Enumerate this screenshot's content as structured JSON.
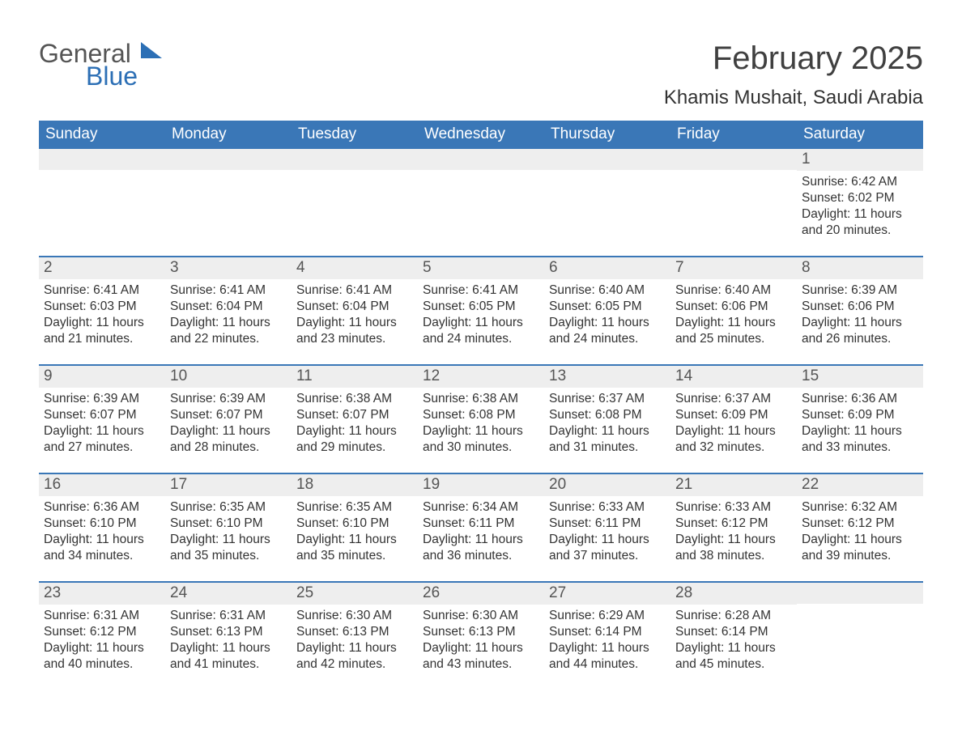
{
  "logo": {
    "line1": "General",
    "line2": "Blue"
  },
  "title": "February 2025",
  "location": "Khamis Mushait, Saudi Arabia",
  "colors": {
    "accent": "#3a77b7",
    "header_text": "#ffffff",
    "daynum_bg": "#eeeeee",
    "text": "#333333",
    "background": "#ffffff"
  },
  "calendar": {
    "type": "table",
    "columns": [
      "Sunday",
      "Monday",
      "Tuesday",
      "Wednesday",
      "Thursday",
      "Friday",
      "Saturday"
    ],
    "weeks": [
      [
        {
          "day": "",
          "sunrise": "",
          "sunset": "",
          "daylight": ""
        },
        {
          "day": "",
          "sunrise": "",
          "sunset": "",
          "daylight": ""
        },
        {
          "day": "",
          "sunrise": "",
          "sunset": "",
          "daylight": ""
        },
        {
          "day": "",
          "sunrise": "",
          "sunset": "",
          "daylight": ""
        },
        {
          "day": "",
          "sunrise": "",
          "sunset": "",
          "daylight": ""
        },
        {
          "day": "",
          "sunrise": "",
          "sunset": "",
          "daylight": ""
        },
        {
          "day": "1",
          "sunrise": "Sunrise: 6:42 AM",
          "sunset": "Sunset: 6:02 PM",
          "daylight": "Daylight: 11 hours and 20 minutes."
        }
      ],
      [
        {
          "day": "2",
          "sunrise": "Sunrise: 6:41 AM",
          "sunset": "Sunset: 6:03 PM",
          "daylight": "Daylight: 11 hours and 21 minutes."
        },
        {
          "day": "3",
          "sunrise": "Sunrise: 6:41 AM",
          "sunset": "Sunset: 6:04 PM",
          "daylight": "Daylight: 11 hours and 22 minutes."
        },
        {
          "day": "4",
          "sunrise": "Sunrise: 6:41 AM",
          "sunset": "Sunset: 6:04 PM",
          "daylight": "Daylight: 11 hours and 23 minutes."
        },
        {
          "day": "5",
          "sunrise": "Sunrise: 6:41 AM",
          "sunset": "Sunset: 6:05 PM",
          "daylight": "Daylight: 11 hours and 24 minutes."
        },
        {
          "day": "6",
          "sunrise": "Sunrise: 6:40 AM",
          "sunset": "Sunset: 6:05 PM",
          "daylight": "Daylight: 11 hours and 24 minutes."
        },
        {
          "day": "7",
          "sunrise": "Sunrise: 6:40 AM",
          "sunset": "Sunset: 6:06 PM",
          "daylight": "Daylight: 11 hours and 25 minutes."
        },
        {
          "day": "8",
          "sunrise": "Sunrise: 6:39 AM",
          "sunset": "Sunset: 6:06 PM",
          "daylight": "Daylight: 11 hours and 26 minutes."
        }
      ],
      [
        {
          "day": "9",
          "sunrise": "Sunrise: 6:39 AM",
          "sunset": "Sunset: 6:07 PM",
          "daylight": "Daylight: 11 hours and 27 minutes."
        },
        {
          "day": "10",
          "sunrise": "Sunrise: 6:39 AM",
          "sunset": "Sunset: 6:07 PM",
          "daylight": "Daylight: 11 hours and 28 minutes."
        },
        {
          "day": "11",
          "sunrise": "Sunrise: 6:38 AM",
          "sunset": "Sunset: 6:07 PM",
          "daylight": "Daylight: 11 hours and 29 minutes."
        },
        {
          "day": "12",
          "sunrise": "Sunrise: 6:38 AM",
          "sunset": "Sunset: 6:08 PM",
          "daylight": "Daylight: 11 hours and 30 minutes."
        },
        {
          "day": "13",
          "sunrise": "Sunrise: 6:37 AM",
          "sunset": "Sunset: 6:08 PM",
          "daylight": "Daylight: 11 hours and 31 minutes."
        },
        {
          "day": "14",
          "sunrise": "Sunrise: 6:37 AM",
          "sunset": "Sunset: 6:09 PM",
          "daylight": "Daylight: 11 hours and 32 minutes."
        },
        {
          "day": "15",
          "sunrise": "Sunrise: 6:36 AM",
          "sunset": "Sunset: 6:09 PM",
          "daylight": "Daylight: 11 hours and 33 minutes."
        }
      ],
      [
        {
          "day": "16",
          "sunrise": "Sunrise: 6:36 AM",
          "sunset": "Sunset: 6:10 PM",
          "daylight": "Daylight: 11 hours and 34 minutes."
        },
        {
          "day": "17",
          "sunrise": "Sunrise: 6:35 AM",
          "sunset": "Sunset: 6:10 PM",
          "daylight": "Daylight: 11 hours and 35 minutes."
        },
        {
          "day": "18",
          "sunrise": "Sunrise: 6:35 AM",
          "sunset": "Sunset: 6:10 PM",
          "daylight": "Daylight: 11 hours and 35 minutes."
        },
        {
          "day": "19",
          "sunrise": "Sunrise: 6:34 AM",
          "sunset": "Sunset: 6:11 PM",
          "daylight": "Daylight: 11 hours and 36 minutes."
        },
        {
          "day": "20",
          "sunrise": "Sunrise: 6:33 AM",
          "sunset": "Sunset: 6:11 PM",
          "daylight": "Daylight: 11 hours and 37 minutes."
        },
        {
          "day": "21",
          "sunrise": "Sunrise: 6:33 AM",
          "sunset": "Sunset: 6:12 PM",
          "daylight": "Daylight: 11 hours and 38 minutes."
        },
        {
          "day": "22",
          "sunrise": "Sunrise: 6:32 AM",
          "sunset": "Sunset: 6:12 PM",
          "daylight": "Daylight: 11 hours and 39 minutes."
        }
      ],
      [
        {
          "day": "23",
          "sunrise": "Sunrise: 6:31 AM",
          "sunset": "Sunset: 6:12 PM",
          "daylight": "Daylight: 11 hours and 40 minutes."
        },
        {
          "day": "24",
          "sunrise": "Sunrise: 6:31 AM",
          "sunset": "Sunset: 6:13 PM",
          "daylight": "Daylight: 11 hours and 41 minutes."
        },
        {
          "day": "25",
          "sunrise": "Sunrise: 6:30 AM",
          "sunset": "Sunset: 6:13 PM",
          "daylight": "Daylight: 11 hours and 42 minutes."
        },
        {
          "day": "26",
          "sunrise": "Sunrise: 6:30 AM",
          "sunset": "Sunset: 6:13 PM",
          "daylight": "Daylight: 11 hours and 43 minutes."
        },
        {
          "day": "27",
          "sunrise": "Sunrise: 6:29 AM",
          "sunset": "Sunset: 6:14 PM",
          "daylight": "Daylight: 11 hours and 44 minutes."
        },
        {
          "day": "28",
          "sunrise": "Sunrise: 6:28 AM",
          "sunset": "Sunset: 6:14 PM",
          "daylight": "Daylight: 11 hours and 45 minutes."
        },
        {
          "day": "",
          "sunrise": "",
          "sunset": "",
          "daylight": ""
        }
      ]
    ]
  }
}
